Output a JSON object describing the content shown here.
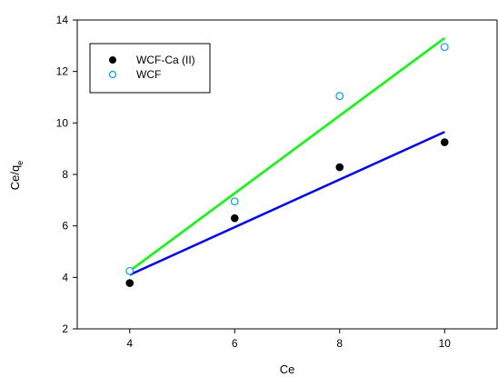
{
  "chart_data": {
    "type": "scatter",
    "xlabel": "Ce",
    "ylabel": "Ce/q",
    "ylabel_subscript": "e",
    "xlim": [
      3,
      11
    ],
    "ylim": [
      2,
      14
    ],
    "xticks": [
      4,
      6,
      8,
      10
    ],
    "yticks": [
      2,
      4,
      6,
      8,
      10,
      12,
      14
    ],
    "grid": false,
    "legend_position": "top-left",
    "series": [
      {
        "name": "WCF-Ca (II)",
        "marker": "filled-circle",
        "marker_color": "#000000",
        "line_color": "#0000ff",
        "x": [
          4,
          6,
          8,
          10
        ],
        "y": [
          3.78,
          6.3,
          8.28,
          9.25
        ],
        "fit": {
          "x": [
            4,
            10
          ],
          "y": [
            4.1,
            9.65
          ]
        }
      },
      {
        "name": "WCF",
        "marker": "open-circle",
        "marker_color": "#00a0ff",
        "line_color": "#00ff00",
        "x": [
          4,
          6,
          8,
          10
        ],
        "y": [
          4.25,
          6.95,
          11.05,
          12.95
        ],
        "fit": {
          "x": [
            4,
            10
          ],
          "y": [
            4.25,
            13.3
          ]
        }
      }
    ]
  }
}
